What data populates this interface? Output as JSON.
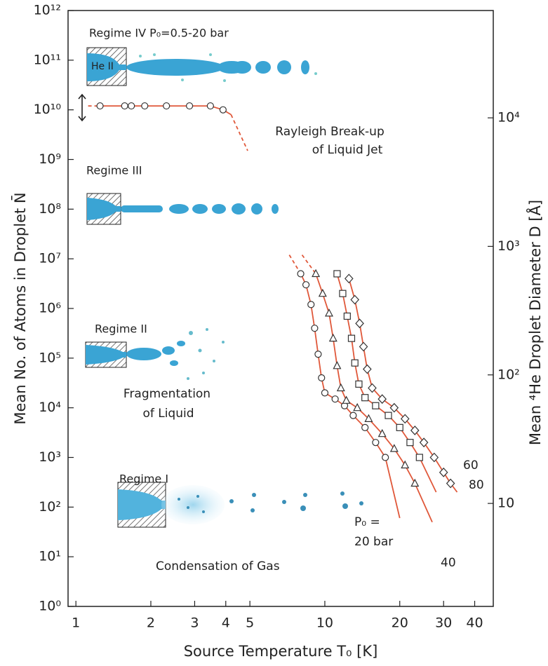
{
  "chart_data": {
    "type": "scatter",
    "xlabel": "Source Temperature T₀ [K]",
    "ylabel": "Mean No. of Atoms in Droplet N̄",
    "y2label": "Mean ⁴He Droplet Diameter D [Å]",
    "xscale": "log",
    "yscale": "log",
    "xlim": [
      0.93,
      47.5
    ],
    "xticks": [
      1,
      2,
      3,
      4,
      5,
      10,
      20,
      30,
      40
    ],
    "ylim": [
      1,
      1000000000000
    ],
    "yticks": [
      {
        "value": 1,
        "label": "10⁰"
      },
      {
        "value": 10,
        "label": "10¹"
      },
      {
        "value": 100,
        "label": "10²"
      },
      {
        "value": 1000,
        "label": "10³"
      },
      {
        "value": 10000,
        "label": "10⁴"
      },
      {
        "value": 100000,
        "label": "10⁵"
      },
      {
        "value": 1000000,
        "label": "10⁶"
      },
      {
        "value": 10000000,
        "label": "10⁷"
      },
      {
        "value": 100000000,
        "label": "10⁸"
      },
      {
        "value": 1000000000,
        "label": "10⁹"
      },
      {
        "value": 10000000000,
        "label": "10¹⁰"
      },
      {
        "value": 100000000000,
        "label": "10¹¹"
      },
      {
        "value": 1000000000000,
        "label": "10¹²"
      }
    ],
    "y2lim": [
      1.58,
      68400
    ],
    "y2ticks": [
      10,
      {
        "value": 100,
        "label": "10²"
      },
      {
        "value": 1000,
        "label": "10³"
      },
      {
        "value": 10000,
        "label": "10⁴"
      }
    ],
    "line_color": "#e0583a",
    "annotations": {
      "regime_iv": "Regime IV  P₀=0.5-20 bar",
      "he_ii": "He II",
      "rayleigh_1": "Rayleigh Break-up",
      "rayleigh_2": "of Liquid Jet",
      "regime_iii": "Regime III",
      "regime_ii": "Regime II",
      "fragmentation_1": "Fragmentation",
      "fragmentation_2": "of Liquid",
      "regime_i": "Regime I",
      "condensation": "Condensation of Gas",
      "p0_1": "P₀ =",
      "p0_2": "20 bar",
      "p40": "40",
      "p60": "60",
      "p80": "80"
    },
    "series": [
      {
        "marker": "circle",
        "x": [
          1.25,
          1.57,
          1.67,
          1.89,
          2.31,
          2.86,
          3.47,
          3.9
        ],
        "values": [
          12000000000,
          12000000000,
          12000000000,
          12000000000,
          12000000000,
          12000000000,
          12000000000,
          10000000000
        ],
        "curve": {
          "x": [
            1.25,
            3.47,
            3.9,
            4.2
          ],
          "values": [
            12000000000,
            12000000000,
            10000000000,
            8000000000
          ]
        },
        "dashed": [
          {
            "x": [
              1.12,
              1.25
            ],
            "values": [
              12000000000,
              12000000000
            ]
          },
          {
            "x": [
              4.2,
              4.9
            ],
            "values": [
              8000000000,
              1500000000
            ]
          }
        ]
      },
      {
        "marker": "circle",
        "x": [
          8.0,
          8.4,
          8.8,
          9.1,
          9.4,
          9.7,
          10,
          11,
          12,
          13,
          14.5,
          16,
          17.5
        ],
        "values": [
          5000000,
          3000000,
          1200000,
          400000,
          120000,
          40000,
          20000,
          15000,
          11000,
          7000,
          4000,
          2000,
          1000
        ],
        "curve": {
          "x": [
            8.0,
            8.4,
            8.8,
            9.1,
            9.4,
            9.7,
            10,
            11,
            12,
            13,
            14.5,
            16,
            17.5,
            20
          ],
          "values": [
            5000000,
            3000000,
            1200000,
            400000,
            120000,
            40000,
            20000,
            15000,
            11000,
            7000,
            4000,
            2000,
            1000,
            60
          ]
        },
        "dashed": [
          {
            "x": [
              7.2,
              8.0
            ],
            "values": [
              12000000,
              5000000
            ]
          }
        ]
      },
      {
        "marker": "triangle",
        "x": [
          9.2,
          9.8,
          10.4,
          10.8,
          11.2,
          11.6,
          12.2,
          13.5,
          15,
          17,
          19,
          21,
          23
        ],
        "values": [
          5000000,
          2000000,
          800000,
          250000,
          70000,
          25000,
          14000,
          10000,
          6000,
          3000,
          1500,
          700,
          300
        ],
        "curve": {
          "x": [
            9.2,
            9.8,
            10.4,
            10.8,
            11.2,
            11.6,
            12.2,
            13.5,
            15,
            17,
            19,
            21,
            23,
            27
          ],
          "values": [
            5000000,
            2000000,
            800000,
            250000,
            70000,
            25000,
            14000,
            10000,
            6000,
            3000,
            1500,
            700,
            300,
            50
          ]
        },
        "dashed": [
          {
            "x": [
              8.1,
              9.2
            ],
            "values": [
              12000000,
              5000000
            ]
          }
        ]
      },
      {
        "marker": "square",
        "x": [
          11.2,
          11.8,
          12.3,
          12.8,
          13.2,
          13.7,
          14.5,
          16,
          18,
          20,
          22,
          24
        ],
        "values": [
          5000000,
          2000000,
          700000,
          250000,
          80000,
          30000,
          16000,
          11000,
          7000,
          4000,
          2000,
          1000
        ],
        "curve": {
          "x": [
            11.2,
            11.8,
            12.3,
            12.8,
            13.2,
            13.7,
            14.5,
            16,
            18,
            20,
            22,
            24,
            28
          ],
          "values": [
            5000000,
            2000000,
            700000,
            250000,
            80000,
            30000,
            16000,
            11000,
            7000,
            4000,
            2000,
            1000,
            200
          ]
        }
      },
      {
        "marker": "diamond",
        "x": [
          12.5,
          13.2,
          13.8,
          14.3,
          14.8,
          15.5,
          17,
          19,
          21,
          23,
          25,
          27.5,
          30,
          32
        ],
        "values": [
          4000000,
          1500000,
          500000,
          170000,
          60000,
          25000,
          15000,
          10000,
          6000,
          3500,
          2000,
          1000,
          500,
          300
        ],
        "curve": {
          "x": [
            12.5,
            13.2,
            13.8,
            14.3,
            14.8,
            15.5,
            17,
            19,
            21,
            23,
            25,
            27.5,
            30,
            32,
            34
          ],
          "values": [
            4000000,
            1500000,
            500000,
            170000,
            60000,
            25000,
            15000,
            10000,
            6000,
            3500,
            2000,
            1000,
            500,
            300,
            200
          ]
        }
      }
    ]
  }
}
